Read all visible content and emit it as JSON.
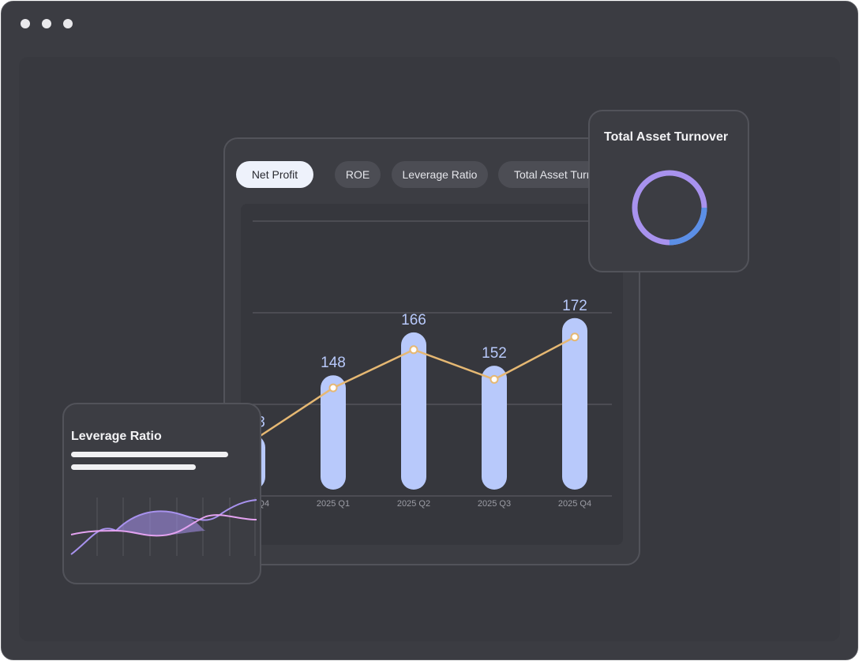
{
  "window": {
    "controls": [
      "dot",
      "dot",
      "dot"
    ]
  },
  "tabs": [
    {
      "label": "Net Profit",
      "active": true
    },
    {
      "label": "ROE",
      "active": false
    },
    {
      "label": "Leverage Ratio",
      "active": false
    },
    {
      "label": "Total Asset Turnover",
      "active": false
    }
  ],
  "turnover_card": {
    "title": "Total Asset Turnover",
    "ring_fraction": 0.25,
    "ring_colors": {
      "track": "#a892ee",
      "progress": "#5b8fe6"
    }
  },
  "leverage_card": {
    "title": "Leverage Ratio",
    "series_colors": [
      "#a892ee",
      "#e3a2f0"
    ]
  },
  "chart_data": {
    "type": "bar",
    "categories": [
      "2024 Q4",
      "2025 Q1",
      "2025 Q2",
      "2025 Q3",
      "2025 Q4"
    ],
    "values": [
      123,
      148,
      166,
      152,
      172
    ],
    "data_labels": [
      "123",
      "148",
      "166",
      "152",
      "172"
    ],
    "line_overlay": true,
    "grid": true,
    "colors": {
      "bar": "#b8c9fb",
      "label": "#b8c9fb",
      "line": "#e6b873",
      "tick": "#9c9da5"
    }
  }
}
